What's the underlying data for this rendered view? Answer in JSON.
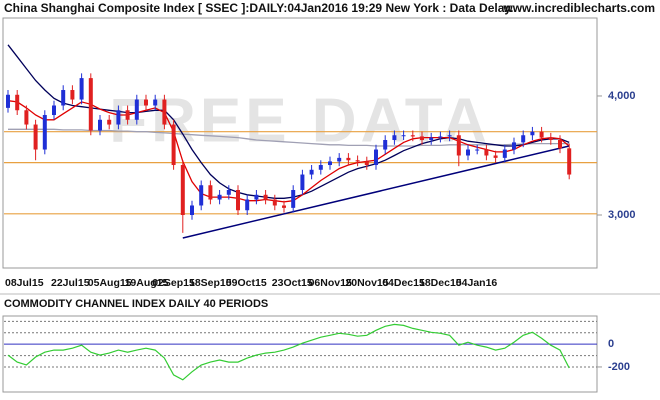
{
  "header": {
    "title": "China Shanghai Composite Index [ SSEC ]:DAILY:04Jan2016 19:29 New York : Data Delay..",
    "site": "www.incrediblecharts.com"
  },
  "chart_data": [
    {
      "type": "candlestick",
      "watermark": "FREE DATA",
      "categories": [
        "08Jul15",
        null,
        null,
        null,
        null,
        "22Jul15",
        null,
        null,
        null,
        "05Aug15",
        null,
        null,
        null,
        "19Aug15",
        null,
        null,
        "02Sep15",
        null,
        null,
        null,
        "18Sep15",
        null,
        null,
        null,
        "09Oct15",
        null,
        null,
        null,
        null,
        "23Oct15",
        null,
        null,
        null,
        "06Nov15",
        null,
        null,
        null,
        "20Nov15",
        null,
        null,
        null,
        "04Dec15",
        null,
        null,
        null,
        "18Dec15",
        null,
        null,
        null,
        "04Jan16",
        null,
        null,
        null,
        null,
        null,
        null,
        null,
        null,
        null,
        null,
        null,
        null
      ],
      "open": [
        3900,
        4010,
        3880,
        3760,
        3550,
        3840,
        3920,
        4050,
        3970,
        4150,
        3710,
        3800,
        3760,
        3880,
        3800,
        3970,
        3920,
        3970,
        3760,
        3420,
        3000,
        3080,
        3250,
        3130,
        3170,
        3210,
        3040,
        3130,
        3170,
        3130,
        3080,
        3060,
        3210,
        3340,
        3380,
        3420,
        3450,
        3480,
        3460,
        3450,
        3420,
        3550,
        3630,
        3670,
        3670,
        3660,
        3630,
        3650,
        3660,
        3670,
        3500,
        3550,
        3550,
        3500,
        3480,
        3550,
        3610,
        3670,
        3700,
        3650,
        3630,
        3560
      ],
      "high": [
        4050,
        4050,
        3920,
        3800,
        3880,
        3960,
        4090,
        4090,
        4190,
        4190,
        3840,
        3840,
        3920,
        3920,
        4010,
        4010,
        4010,
        4010,
        3800,
        3460,
        3120,
        3290,
        3290,
        3210,
        3250,
        3250,
        3170,
        3210,
        3210,
        3170,
        3120,
        3250,
        3380,
        3420,
        3460,
        3490,
        3520,
        3520,
        3500,
        3490,
        3590,
        3670,
        3710,
        3710,
        3710,
        3700,
        3690,
        3700,
        3710,
        3710,
        3590,
        3590,
        3590,
        3540,
        3590,
        3650,
        3710,
        3740,
        3740,
        3690,
        3670,
        3600
      ],
      "low": [
        3860,
        3840,
        3720,
        3460,
        3510,
        3800,
        3880,
        3930,
        3930,
        3670,
        3670,
        3720,
        3720,
        3760,
        3760,
        3880,
        3880,
        3720,
        3380,
        2850,
        2960,
        3040,
        3090,
        3090,
        3130,
        3000,
        3000,
        3090,
        3090,
        3040,
        3020,
        3020,
        3170,
        3300,
        3340,
        3380,
        3410,
        3420,
        3410,
        3380,
        3380,
        3510,
        3590,
        3630,
        3620,
        3590,
        3590,
        3610,
        3620,
        3410,
        3460,
        3510,
        3460,
        3440,
        3440,
        3510,
        3570,
        3630,
        3610,
        3590,
        3520,
        3300
      ],
      "close": [
        4010,
        3880,
        3760,
        3550,
        3840,
        3920,
        4050,
        3970,
        4150,
        3710,
        3800,
        3760,
        3880,
        3800,
        3970,
        3920,
        3970,
        3760,
        3420,
        3000,
        3080,
        3250,
        3130,
        3170,
        3210,
        3040,
        3130,
        3170,
        3130,
        3080,
        3060,
        3210,
        3340,
        3380,
        3420,
        3450,
        3480,
        3460,
        3450,
        3420,
        3550,
        3630,
        3670,
        3670,
        3660,
        3630,
        3650,
        3660,
        3670,
        3500,
        3550,
        3550,
        3500,
        3480,
        3550,
        3610,
        3670,
        3700,
        3650,
        3630,
        3560,
        3340
      ],
      "up_color": "#1f2fd6",
      "down_color": "#e02020",
      "series": [
        {
          "color": "#a0a0b4",
          "values": [
            3720,
            3720,
            3720,
            3720,
            3720,
            3720,
            3715,
            3715,
            3715,
            3710,
            3710,
            3710,
            3705,
            3705,
            3700,
            3700,
            3695,
            3690,
            3685,
            3680,
            3675,
            3670,
            3665,
            3660,
            3655,
            3650,
            3640,
            3630,
            3625,
            3620,
            3615,
            3610,
            3605,
            3600,
            3595,
            3590,
            3590,
            3585,
            3585,
            3585,
            3580,
            3580,
            3580,
            3580,
            3580,
            3585,
            3585,
            3585,
            3590,
            3590,
            3590,
            3590,
            3590,
            3590,
            3590,
            3595,
            3595,
            3600,
            3600,
            3600,
            3600,
            3600
          ]
        },
        {
          "color": "#00005a",
          "values": [
            4430,
            4330,
            4230,
            4130,
            4050,
            3980,
            3940,
            3920,
            3910,
            3900,
            3890,
            3880,
            3870,
            3860,
            3860,
            3870,
            3880,
            3880,
            3800,
            3680,
            3550,
            3440,
            3340,
            3270,
            3220,
            3190,
            3170,
            3160,
            3150,
            3140,
            3140,
            3150,
            3170,
            3200,
            3240,
            3280,
            3320,
            3360,
            3390,
            3410,
            3430,
            3460,
            3500,
            3540,
            3570,
            3600,
            3620,
            3640,
            3650,
            3640,
            3620,
            3610,
            3600,
            3590,
            3580,
            3580,
            3590,
            3610,
            3630,
            3640,
            3640,
            3610
          ]
        },
        {
          "color": "#e00000",
          "values": [
            3960,
            3950,
            3900,
            3840,
            3800,
            3800,
            3850,
            3900,
            3950,
            3930,
            3890,
            3860,
            3840,
            3840,
            3860,
            3880,
            3900,
            3860,
            3700,
            3450,
            3280,
            3180,
            3150,
            3150,
            3150,
            3140,
            3120,
            3120,
            3130,
            3120,
            3110,
            3120,
            3170,
            3230,
            3290,
            3340,
            3390,
            3420,
            3440,
            3450,
            3460,
            3510,
            3560,
            3610,
            3640,
            3650,
            3650,
            3650,
            3650,
            3620,
            3590,
            3570,
            3550,
            3530,
            3530,
            3550,
            3590,
            3620,
            3640,
            3650,
            3640,
            3580
          ]
        }
      ],
      "trendline": {
        "x": [
          19,
          61
        ],
        "values": [
          2807,
          3580
        ],
        "color": "#00007a"
      },
      "hlines": [
        3700,
        3440,
        3010
      ],
      "hline_color": "#e8a040",
      "ylim": [
        2580,
        4655
      ],
      "yticks": [
        {
          "value": 4000,
          "label": "4,000"
        },
        {
          "value": 3000,
          "label": "3,000"
        }
      ]
    },
    {
      "type": "line",
      "title": "COMMODITY CHANNEL INDEX DAILY 40 PERIODS",
      "series": [
        {
          "color": "#33cc33",
          "values": [
            -96,
            -157,
            -183,
            -113,
            -70,
            -52,
            -52,
            -35,
            -9,
            -70,
            -96,
            -78,
            -52,
            -70,
            -52,
            -35,
            -52,
            -122,
            -270,
            -313,
            -243,
            -183,
            -157,
            -139,
            -157,
            -157,
            -122,
            -96,
            -78,
            -70,
            -52,
            -26,
            9,
            35,
            61,
            78,
            96,
            87,
            70,
            78,
            122,
            157,
            174,
            165,
            139,
            122,
            104,
            96,
            78,
            -9,
            17,
            -9,
            -26,
            -52,
            -35,
            17,
            78,
            104,
            52,
            -9,
            -52,
            -209
          ]
        }
      ],
      "hlines": [
        200,
        100,
        -100,
        -200
      ],
      "hline_color": "#777777",
      "zero_color": "#3030c0",
      "ylim": [
        -420,
        230
      ],
      "yticks": [
        0,
        -200
      ]
    }
  ]
}
